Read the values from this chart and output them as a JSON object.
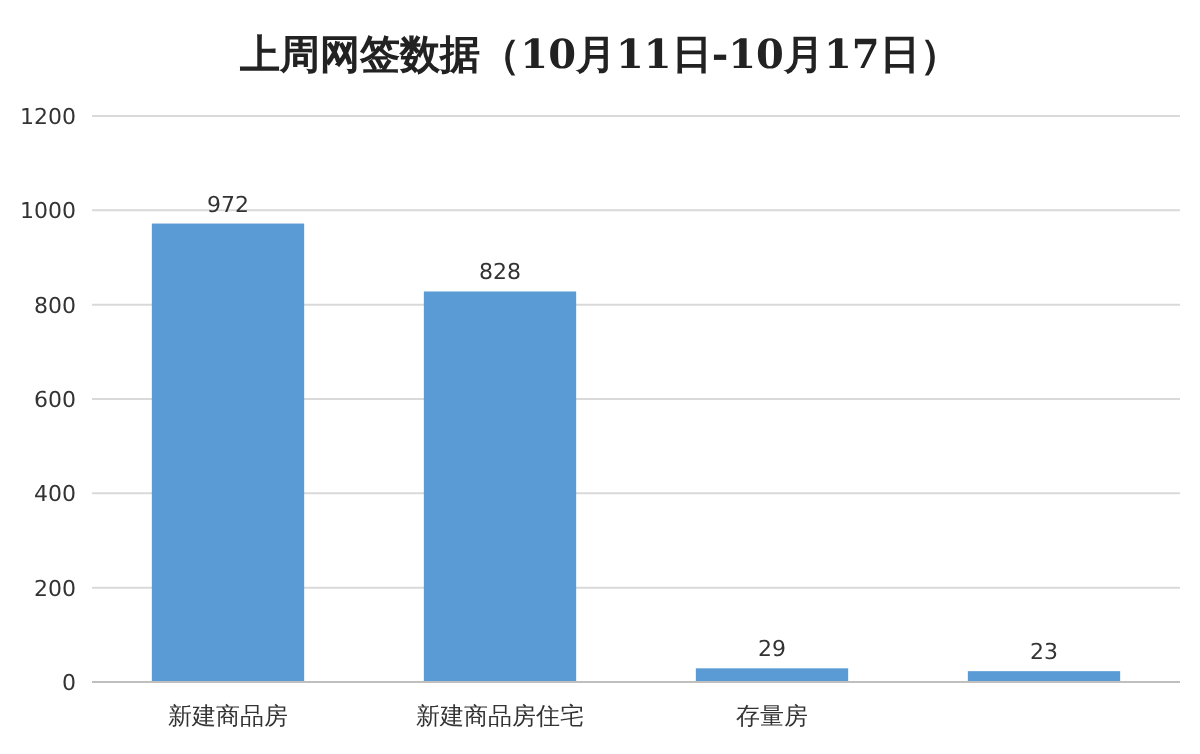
{
  "chart_data": {
    "type": "bar",
    "title": "上周网签数据（10月11日-10月17日）",
    "categories": [
      "新建商品房",
      "新建商品房住宅",
      "存量房",
      null
    ],
    "values": [
      972,
      828,
      29,
      23
    ],
    "color": "#5b9bd5",
    "ylim": [
      0,
      1200
    ],
    "yticks": [
      0,
      200,
      400,
      600,
      800,
      1000,
      1200
    ],
    "grid": "y",
    "data_labels": true
  }
}
